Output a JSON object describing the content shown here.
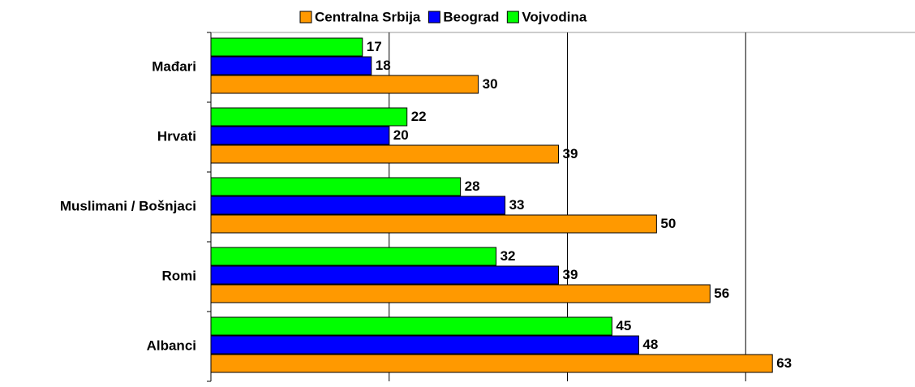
{
  "chart_data": {
    "type": "hbar",
    "categories": [
      "Mađari",
      "Hrvati",
      "Muslimani / Bošnjaci",
      "Romi",
      "Albanci"
    ],
    "series": [
      {
        "name": "Centralna Srbija",
        "color": "#ff9900",
        "values": [
          30,
          39,
          50,
          56,
          63
        ]
      },
      {
        "name": "Beograd",
        "color": "#0000ff",
        "values": [
          18,
          20,
          33,
          39,
          48
        ]
      },
      {
        "name": "Vojvodina",
        "color": "#00ff00",
        "values": [
          17,
          22,
          28,
          32,
          45
        ]
      }
    ],
    "xlim": [
      0,
      79
    ],
    "xticks": [
      20,
      40,
      60
    ],
    "grid": true,
    "legend": "top"
  }
}
